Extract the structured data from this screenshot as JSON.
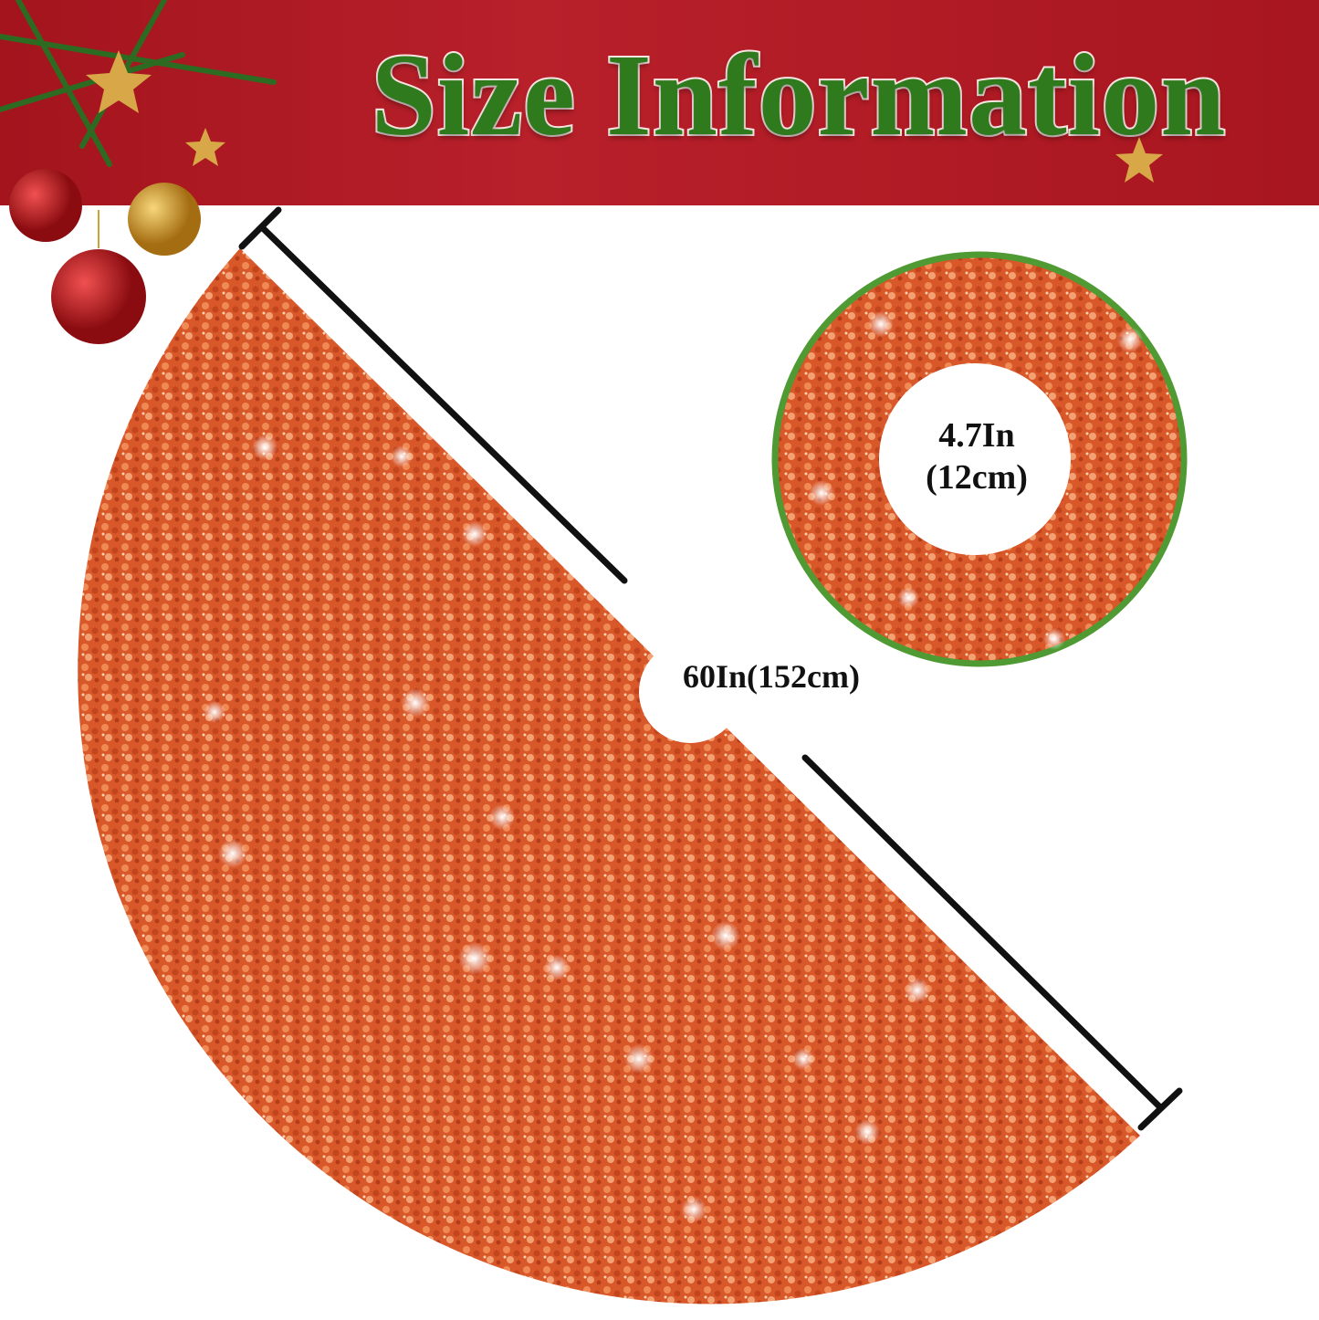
{
  "banner": {
    "title": "Size Information",
    "background_color": "#b01c25",
    "title_color": "#2f7a1d"
  },
  "tree_skirt": {
    "diameter_label": "60In(152cm)",
    "color": "#e0622a",
    "finish": "sequin"
  },
  "center_hole": {
    "diameter_line1": "4.7In",
    "diameter_line2": "(12cm)",
    "border_color": "#4f9a32"
  },
  "decorations": {
    "icons": [
      "pine-branch-icon",
      "christmas-ornament-icon",
      "star-icon"
    ]
  }
}
